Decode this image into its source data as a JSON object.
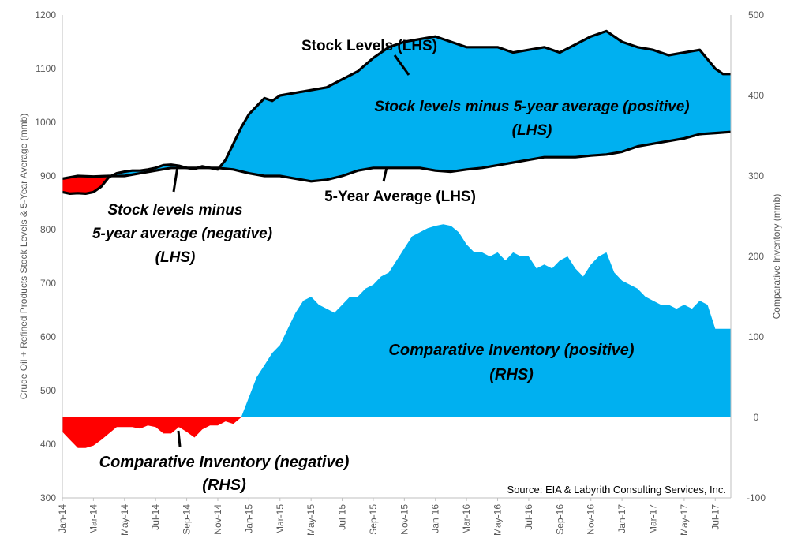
{
  "chart_data": {
    "type": "area",
    "source": "Source: EIA & Labyrith Consulting Services, Inc.",
    "left_axis": {
      "title": "Crude Oil + Refined Products Stock Levels & 5-Year Average (mmb)",
      "ylim": [
        300,
        1200
      ],
      "ticks": [
        "300",
        "400",
        "500",
        "600",
        "700",
        "800",
        "900",
        "1000",
        "1100",
        "1200"
      ]
    },
    "right_axis": {
      "title": "Comparative Inventory (mmb)",
      "ylim": [
        -100,
        500
      ],
      "ticks": [
        "-100",
        "0",
        "100",
        "200",
        "300",
        "400",
        "500"
      ]
    },
    "x_ticks": [
      "Jan-14",
      "Mar-14",
      "May-14",
      "Jul-14",
      "Sep-14",
      "Nov-14",
      "Jan-15",
      "Mar-15",
      "May-15",
      "Jul-15",
      "Sep-15",
      "Nov-15",
      "Jan-16",
      "Mar-16",
      "May-16",
      "Jul-16",
      "Sep-16",
      "Nov-16",
      "Jan-17",
      "Mar-17",
      "May-17",
      "Jul-17"
    ],
    "x_range_months": [
      0,
      43
    ],
    "colors": {
      "positive": "#00B0F0",
      "negative": "#FF0000",
      "line": "#000000"
    },
    "annotations": {
      "stock_levels": "Stock Levels (LHS)",
      "five_year": "5-Year Average (LHS)",
      "pos_upper_1": "Stock levels minus 5-year average (positive)",
      "pos_upper_2": "(LHS)",
      "neg_upper_1": "Stock levels minus",
      "neg_upper_2": "5-year average (negative)",
      "neg_upper_3": "(LHS)",
      "comp_pos_1": "Comparative Inventory (positive)",
      "comp_pos_2": "(RHS)",
      "comp_neg_1": "Comparative Inventory (negative)",
      "comp_neg_2": "(RHS)"
    },
    "series": [
      {
        "name": "Stock Levels (LHS)",
        "axis": "left",
        "x": [
          0,
          0.5,
          1,
          1.5,
          2,
          2.5,
          3,
          3.5,
          4,
          4.5,
          5,
          5.5,
          6,
          6.5,
          7,
          7.5,
          8,
          8.5,
          9,
          9.5,
          10,
          10.5,
          11,
          11.5,
          12,
          12.5,
          13,
          13.5,
          14,
          15,
          16,
          17,
          18,
          19,
          20,
          21,
          22,
          23,
          24,
          25,
          26,
          27,
          28,
          29,
          30,
          31,
          32,
          33,
          34,
          35,
          36,
          37,
          38,
          39,
          40,
          41,
          42,
          42.5,
          43
        ],
        "values": [
          870,
          867,
          868,
          867,
          870,
          880,
          898,
          905,
          908,
          910,
          910,
          912,
          915,
          920,
          921,
          919,
          915,
          913,
          918,
          915,
          912,
          930,
          960,
          990,
          1015,
          1030,
          1045,
          1040,
          1050,
          1055,
          1060,
          1065,
          1080,
          1095,
          1120,
          1140,
          1150,
          1155,
          1160,
          1150,
          1140,
          1140,
          1140,
          1130,
          1135,
          1140,
          1130,
          1145,
          1160,
          1170,
          1150,
          1140,
          1135,
          1125,
          1130,
          1135,
          1100,
          1090,
          1090
        ]
      },
      {
        "name": "5-Year Average (LHS)",
        "axis": "left",
        "x": [
          0,
          1,
          2,
          3,
          4,
          5,
          6,
          7,
          8,
          9,
          10,
          11,
          12,
          13,
          14,
          15,
          16,
          17,
          18,
          19,
          20,
          21,
          22,
          23,
          24,
          25,
          26,
          27,
          28,
          29,
          30,
          31,
          32,
          33,
          34,
          35,
          36,
          37,
          38,
          39,
          40,
          41,
          42,
          43
        ],
        "values": [
          895,
          900,
          899,
          900,
          900,
          905,
          910,
          915,
          915,
          915,
          915,
          912,
          905,
          900,
          900,
          895,
          890,
          893,
          900,
          910,
          915,
          915,
          915,
          915,
          910,
          908,
          912,
          915,
          920,
          925,
          930,
          935,
          935,
          935,
          938,
          940,
          945,
          955,
          960,
          965,
          970,
          978,
          980,
          982
        ]
      },
      {
        "name": "Comparative Inventory (RHS)",
        "axis": "right",
        "x": [
          0,
          0.5,
          1,
          1.5,
          2,
          2.5,
          3,
          3.5,
          4,
          4.5,
          5,
          5.5,
          6,
          6.5,
          7,
          7.5,
          8,
          8.5,
          9,
          9.5,
          10,
          10.5,
          11,
          11.5,
          12,
          12.5,
          13,
          13.5,
          14,
          14.5,
          15,
          15.5,
          16,
          16.5,
          17,
          17.5,
          18,
          18.5,
          19,
          19.5,
          20,
          20.5,
          21,
          21.5,
          22,
          22.5,
          23,
          23.5,
          24,
          24.5,
          25,
          25.5,
          26,
          26.5,
          27,
          27.5,
          28,
          28.5,
          29,
          29.5,
          30,
          30.5,
          31,
          31.5,
          32,
          32.5,
          33,
          33.5,
          34,
          34.5,
          35,
          35.5,
          36,
          36.5,
          37,
          37.5,
          38,
          38.5,
          39,
          39.5,
          40,
          40.5,
          41,
          41.5,
          42,
          42.5,
          43
        ],
        "values": [
          -18,
          -28,
          -38,
          -38,
          -35,
          -28,
          -20,
          -12,
          -12,
          -12,
          -14,
          -10,
          -12,
          -20,
          -20,
          -12,
          -18,
          -25,
          -15,
          -10,
          -10,
          -5,
          -8,
          0,
          25,
          50,
          65,
          80,
          90,
          110,
          130,
          145,
          150,
          140,
          135,
          130,
          140,
          150,
          150,
          160,
          165,
          175,
          180,
          195,
          210,
          225,
          230,
          235,
          238,
          240,
          238,
          230,
          215,
          205,
          205,
          200,
          205,
          195,
          205,
          200,
          200,
          185,
          190,
          185,
          195,
          200,
          185,
          175,
          190,
          200,
          205,
          180,
          170,
          165,
          160,
          150,
          145,
          140,
          140,
          135,
          140,
          135,
          145,
          140,
          110,
          110,
          110
        ]
      }
    ]
  }
}
